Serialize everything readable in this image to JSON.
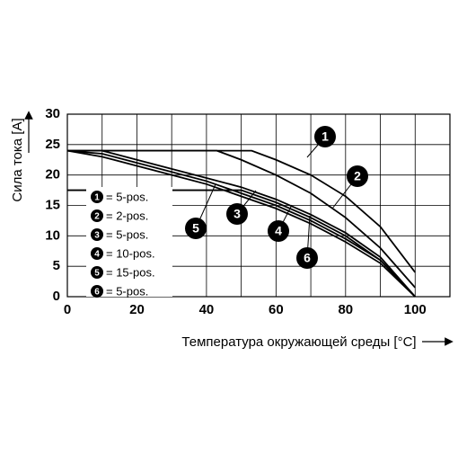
{
  "chart_data": {
    "type": "line",
    "ylabel": "Сила тока [A]",
    "xlabel": "Температура окружающей среды [°C]",
    "xlim": [
      0,
      110
    ],
    "ylim": [
      0,
      30
    ],
    "xticks": [
      0,
      20,
      40,
      60,
      80,
      100
    ],
    "xgrid": [
      10,
      30,
      50,
      70,
      90,
      110
    ],
    "yticks": [
      0,
      5,
      10,
      15,
      20,
      25,
      30
    ],
    "grid": true,
    "series": [
      {
        "marker": "1",
        "name": "= 5-pos.",
        "color": "#000000",
        "x": [
          0,
          53,
          60,
          70,
          80,
          90,
          100
        ],
        "values": [
          24,
          24,
          22.5,
          20,
          16.5,
          11.5,
          4
        ]
      },
      {
        "marker": "2",
        "name": "= 2-pos.",
        "color": "#000000",
        "x": [
          0,
          43,
          50,
          60,
          70,
          80,
          90,
          100
        ],
        "values": [
          24,
          24,
          22.5,
          20,
          17,
          13,
          8,
          1.5
        ]
      },
      {
        "marker": "3",
        "name": "= 5-pos.",
        "color": "#000000",
        "x": [
          0,
          10,
          20,
          30,
          40,
          50,
          60,
          70,
          80,
          90,
          100
        ],
        "values": [
          24,
          24,
          22.5,
          21,
          19.5,
          18,
          16,
          13.5,
          10.5,
          6.5,
          0
        ]
      },
      {
        "marker": "4",
        "name": "= 10-pos.",
        "color": "#000000",
        "x": [
          0,
          10,
          20,
          30,
          40,
          50,
          60,
          70,
          80,
          90,
          100
        ],
        "values": [
          24,
          23.5,
          22,
          20.5,
          19,
          17,
          15,
          12.5,
          9.5,
          6,
          0
        ]
      },
      {
        "marker": "5",
        "name": "= 15-pos.",
        "color": "#000000",
        "x": [
          0,
          10,
          20,
          30,
          40,
          50,
          60,
          70,
          80,
          90,
          100
        ],
        "values": [
          24,
          23,
          21.5,
          20,
          18.5,
          16.5,
          14.5,
          12,
          9,
          5.5,
          0
        ]
      },
      {
        "marker": "6",
        "name": "= 5-pos.",
        "color": "#000000",
        "x": [
          0,
          50,
          60,
          70,
          80,
          90,
          100
        ],
        "values": [
          17.5,
          17.5,
          15.5,
          13,
          10,
          6,
          0
        ]
      }
    ]
  }
}
